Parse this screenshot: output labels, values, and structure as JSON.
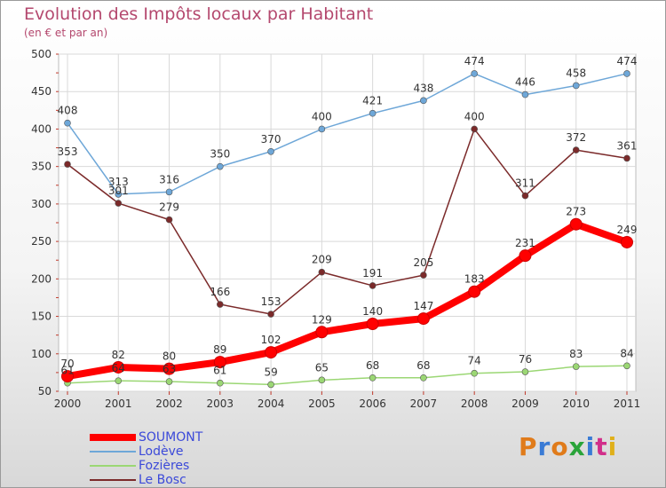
{
  "header": {
    "title": "Evolution des Impôts locaux par Habitant",
    "subtitle": "(en € et par an)"
  },
  "logo": {
    "text": "Proxiti",
    "colors": [
      "#e07b1a",
      "#3a7bd5",
      "#e07b1a",
      "#2aa43a",
      "#3a7bd5",
      "#d12f8a",
      "#e0b01a"
    ]
  },
  "chart_data": {
    "type": "line",
    "x": [
      "2000",
      "2001",
      "2002",
      "2003",
      "2004",
      "2005",
      "2006",
      "2007",
      "2008",
      "2009",
      "2010",
      "2011"
    ],
    "ylim": [
      50,
      500
    ],
    "yticks": [
      50,
      100,
      150,
      200,
      250,
      300,
      350,
      400,
      450,
      500
    ],
    "grid": true,
    "legend_position": "bottom-left",
    "series": [
      {
        "name": "SOUMONT",
        "color": "#ff0000",
        "bold": true,
        "values": [
          70,
          82,
          80,
          89,
          102,
          129,
          140,
          147,
          183,
          231,
          273,
          249
        ]
      },
      {
        "name": "Lodève",
        "color": "#6ea7d8",
        "bold": false,
        "values": [
          408,
          313,
          316,
          350,
          370,
          400,
          421,
          438,
          474,
          446,
          458,
          474
        ]
      },
      {
        "name": "Fozières",
        "color": "#9bd774",
        "bold": false,
        "values": [
          61,
          64,
          63,
          61,
          59,
          65,
          68,
          68,
          74,
          76,
          83,
          84
        ]
      },
      {
        "name": "Le Bosc",
        "color": "#7b2a2a",
        "bold": false,
        "values": [
          353,
          301,
          279,
          166,
          153,
          209,
          191,
          205,
          400,
          311,
          372,
          361
        ]
      }
    ]
  }
}
